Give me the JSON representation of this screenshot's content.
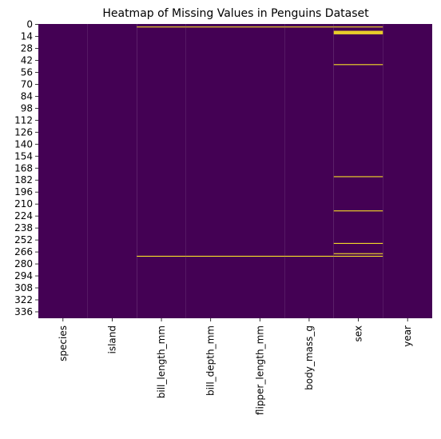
{
  "chart_data": {
    "type": "heatmap",
    "title": "Heatmap of Missing Values in Penguins Dataset",
    "columns": [
      "species",
      "island",
      "bill_length_mm",
      "bill_depth_mm",
      "flipper_length_mm",
      "body_mass_g",
      "sex",
      "year"
    ],
    "n_rows": 344,
    "y_ticks": [
      0,
      14,
      28,
      42,
      56,
      70,
      84,
      98,
      112,
      126,
      140,
      154,
      168,
      182,
      196,
      210,
      224,
      238,
      252,
      266,
      280,
      294,
      308,
      322,
      336
    ],
    "missing": {
      "species": [],
      "island": [],
      "bill_length_mm": [
        3,
        271
      ],
      "bill_depth_mm": [
        3,
        271
      ],
      "flipper_length_mm": [
        3,
        271
      ],
      "body_mass_g": [
        3,
        271
      ],
      "sex": [
        3,
        8,
        9,
        10,
        11,
        47,
        178,
        218,
        256,
        268,
        271
      ],
      "year": []
    },
    "colors": {
      "present": "#440154",
      "missing": "#fde725"
    },
    "colorbar": false
  }
}
